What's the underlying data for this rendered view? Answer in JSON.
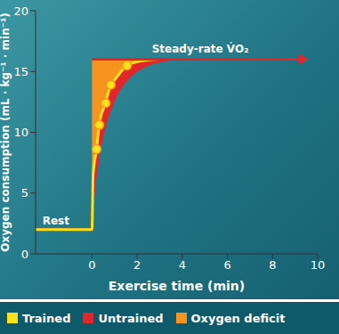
{
  "chart_data": {
    "type": "line",
    "x_label": "Exercise time (min)",
    "y_label": "Oxygen consumption (mL · kg⁻¹ · min⁻¹)",
    "x": [
      -2.5,
      0,
      0.05,
      0.2,
      0.32,
      0.6,
      0.83,
      1,
      1.55,
      2,
      2.5,
      3,
      3.5,
      4
    ],
    "series": [
      {
        "name": "Trained",
        "type": "line",
        "color": "#ffe21a",
        "values": [
          2,
          2,
          6.5,
          8.6,
          10.6,
          12.4,
          13.9,
          14.3,
          15.5,
          15.8,
          15.95,
          16,
          16,
          16
        ]
      },
      {
        "name": "Trained",
        "type": "scatter",
        "marker": "circle",
        "color": "#ffe21a",
        "values": [
          null,
          null,
          null,
          8.6,
          10.6,
          12.4,
          13.9,
          null,
          15.5,
          null,
          null,
          null,
          null,
          null
        ]
      },
      {
        "name": "Untrained",
        "type": "line",
        "color": "#e3262b",
        "values": [
          2,
          2,
          4.5,
          7,
          8.5,
          10.8,
          12,
          12.8,
          14.4,
          15.1,
          15.6,
          15.85,
          16,
          16
        ]
      },
      {
        "name": "Oxygen deficit",
        "type": "area",
        "color": "#f7941d",
        "values": [
          null,
          16,
          16,
          16,
          16,
          16,
          16,
          16,
          16,
          16,
          16,
          16,
          16,
          null
        ]
      }
    ],
    "reference_lines": [
      {
        "label": "Steady-rate V̇O₂",
        "y": 16,
        "x": [
          0,
          9.6
        ],
        "color": "#e3262b"
      }
    ],
    "annotations": [
      {
        "text": "Rest",
        "x": -1.6,
        "y": 2
      }
    ],
    "xlim": [
      -2.5,
      10
    ],
    "xticks": [
      0,
      2,
      4,
      6,
      8,
      10
    ],
    "ylim": [
      0,
      20
    ],
    "yticks": [
      0,
      5,
      10,
      15,
      20
    ],
    "grid": false,
    "legend": "bottom"
  }
}
